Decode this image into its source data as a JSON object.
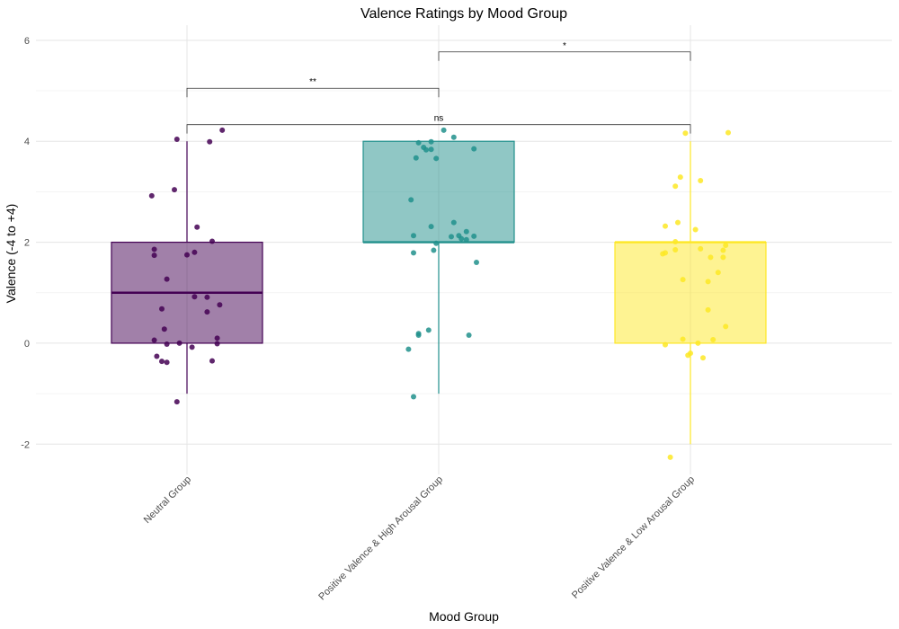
{
  "chart_data": {
    "type": "box",
    "title": "Valence Ratings by Mood Group",
    "xlabel": "Mood Group",
    "ylabel": "Valence (-4 to +4)",
    "ylim": [
      -2.6,
      6.3
    ],
    "yticks": [
      -2,
      0,
      2,
      4,
      6
    ],
    "categories": [
      "Neutral Group",
      "Positive Valence & High Arousal Group",
      "Positive Valence & Low Arousal Group"
    ],
    "colors": [
      "#440154",
      "#21908C",
      "#FDE725"
    ],
    "grid": true,
    "legend": "none",
    "boxes": [
      {
        "q1": 0,
        "median": 1,
        "q3": 2,
        "whisker_low": -1,
        "whisker_high": 4
      },
      {
        "q1": 2,
        "median": 2,
        "q3": 4,
        "whisker_low": -1,
        "whisker_high": 4
      },
      {
        "q1": 0,
        "median": 2,
        "q3": 2,
        "whisker_low": -2,
        "whisker_high": 4
      }
    ],
    "points": [
      [
        [
          -0.04,
          4.04
        ],
        [
          0.14,
          4.22
        ],
        [
          0.09,
          3.99
        ],
        [
          -0.05,
          3.04
        ],
        [
          -0.14,
          2.92
        ],
        [
          0.04,
          2.3
        ],
        [
          0.1,
          2.02
        ],
        [
          -0.13,
          1.86
        ],
        [
          -0.13,
          1.74
        ],
        [
          0.0,
          1.75
        ],
        [
          0.03,
          1.8
        ],
        [
          -0.08,
          1.27
        ],
        [
          0.03,
          0.92
        ],
        [
          0.08,
          0.91
        ],
        [
          0.13,
          0.76
        ],
        [
          -0.1,
          0.68
        ],
        [
          0.08,
          0.62
        ],
        [
          -0.09,
          0.28
        ],
        [
          0.12,
          0.1
        ],
        [
          0.12,
          -0.01
        ],
        [
          -0.13,
          0.06
        ],
        [
          -0.08,
          -0.02
        ],
        [
          -0.03,
          0.0
        ],
        [
          0.02,
          -0.08
        ],
        [
          -0.12,
          -0.26
        ],
        [
          -0.1,
          -0.36
        ],
        [
          -0.08,
          -0.38
        ],
        [
          0.1,
          -0.35
        ],
        [
          -0.04,
          -1.16
        ]
      ],
      [
        [
          0.02,
          4.22
        ],
        [
          0.06,
          4.08
        ],
        [
          -0.08,
          3.97
        ],
        [
          -0.03,
          3.99
        ],
        [
          -0.06,
          3.88
        ],
        [
          -0.05,
          3.83
        ],
        [
          -0.03,
          3.84
        ],
        [
          0.14,
          3.85
        ],
        [
          -0.09,
          3.67
        ],
        [
          -0.01,
          3.66
        ],
        [
          -0.11,
          2.84
        ],
        [
          0.06,
          2.39
        ],
        [
          -0.03,
          2.31
        ],
        [
          0.11,
          2.21
        ],
        [
          -0.1,
          2.13
        ],
        [
          0.05,
          2.11
        ],
        [
          0.08,
          2.13
        ],
        [
          0.14,
          2.12
        ],
        [
          0.09,
          2.07
        ],
        [
          0.11,
          2.05
        ],
        [
          -0.01,
          1.98
        ],
        [
          -0.02,
          1.84
        ],
        [
          -0.1,
          1.79
        ],
        [
          0.15,
          1.6
        ],
        [
          -0.04,
          0.26
        ],
        [
          -0.08,
          0.19
        ],
        [
          -0.08,
          0.16
        ],
        [
          0.12,
          0.16
        ],
        [
          -0.12,
          -0.12
        ],
        [
          -0.1,
          -1.06
        ]
      ],
      [
        [
          -0.02,
          4.16
        ],
        [
          0.15,
          4.17
        ],
        [
          -0.04,
          3.29
        ],
        [
          -0.06,
          3.11
        ],
        [
          0.04,
          3.22
        ],
        [
          -0.05,
          2.39
        ],
        [
          -0.1,
          2.32
        ],
        [
          0.02,
          2.25
        ],
        [
          -0.06,
          1.85
        ],
        [
          -0.1,
          1.79
        ],
        [
          -0.11,
          1.77
        ],
        [
          0.04,
          1.87
        ],
        [
          0.14,
          1.94
        ],
        [
          0.13,
          1.84
        ],
        [
          0.13,
          1.7
        ],
        [
          0.08,
          1.7
        ],
        [
          -0.06,
          2.01
        ],
        [
          0.11,
          1.4
        ],
        [
          0.07,
          1.22
        ],
        [
          -0.03,
          1.26
        ],
        [
          0.07,
          0.66
        ],
        [
          0.14,
          0.33
        ],
        [
          -0.03,
          0.08
        ],
        [
          0.09,
          0.07
        ],
        [
          0.03,
          0.0
        ],
        [
          -0.1,
          -0.03
        ],
        [
          0.0,
          -0.2
        ],
        [
          -0.01,
          -0.24
        ],
        [
          0.05,
          -0.29
        ],
        [
          -0.08,
          -2.26
        ]
      ]
    ],
    "comparisons": [
      {
        "from": 0,
        "to": 1,
        "y": 5.05,
        "label": "**"
      },
      {
        "from": 1,
        "to": 2,
        "y": 5.77,
        "label": "*"
      },
      {
        "from": 0,
        "to": 2,
        "y": 4.33,
        "label": "ns"
      }
    ]
  }
}
